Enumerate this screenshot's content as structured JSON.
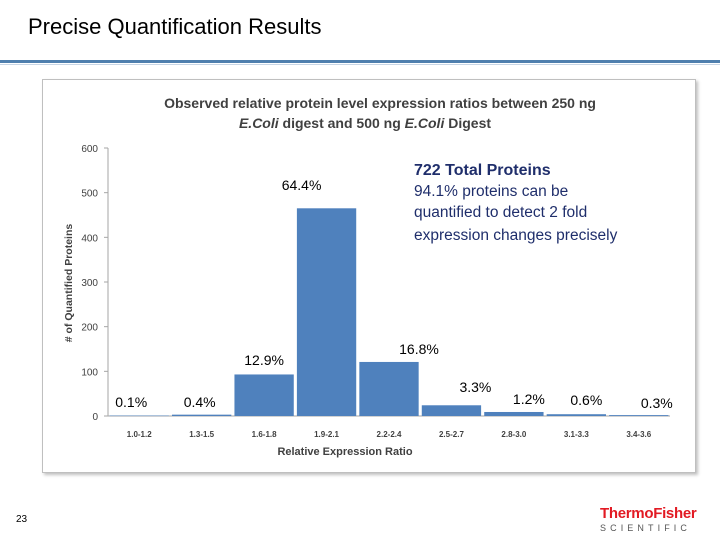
{
  "slide": {
    "title": "Precise Quantification Results",
    "page_number": "23"
  },
  "logo": {
    "top_text": "ThermoFisher",
    "bottom_text": "SCIENTIFIC"
  },
  "colors": {
    "bar": "#4f81bd",
    "accent_rule": "#4f7fae",
    "logo_red": "#e21a23"
  },
  "chart_data": {
    "type": "bar",
    "title_line1": "Observed relative protein level expression ratios between 250 ng",
    "title_line2_parts": [
      "E.Coli",
      " digest and 500 ng ",
      "E.Coli",
      " Digest"
    ],
    "xlabel": "Relative Expression Ratio",
    "ylabel": "# of Quantified Proteins",
    "ylim": [
      0,
      600
    ],
    "yticks": [
      "0",
      "100",
      "200",
      "300",
      "400",
      "500",
      "600"
    ],
    "categories": [
      "1.0-1.2",
      "1.3-1.5",
      "1.6-1.8",
      "1.9-2.1",
      "2.2-2.4",
      "2.5-2.7",
      "2.8-3.0",
      "3.1-3.3",
      "3.4-3.6"
    ],
    "values": [
      1,
      3,
      93,
      465,
      121,
      24,
      9,
      4,
      2
    ],
    "percent_labels": [
      "0.1%",
      "0.4%",
      "12.9%",
      "64.4%",
      "16.8%",
      "3.3%",
      "1.2%",
      "0.6%",
      "0.3%"
    ],
    "grid": false,
    "annotation": {
      "heading": "722 Total Proteins",
      "lines": [
        "94.1% proteins can be",
        "quantified to detect 2 fold",
        "expression changes precisely"
      ]
    }
  }
}
